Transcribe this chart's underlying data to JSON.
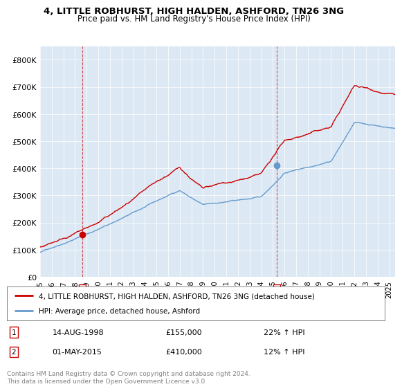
{
  "title1": "4, LITTLE ROBHURST, HIGH HALDEN, ASHFORD, TN26 3NG",
  "title2": "Price paid vs. HM Land Registry's House Price Index (HPI)",
  "ylabel_ticks": [
    "£0",
    "£100K",
    "£200K",
    "£300K",
    "£400K",
    "£500K",
    "£600K",
    "£700K",
    "£800K"
  ],
  "ytick_values": [
    0,
    100000,
    200000,
    300000,
    400000,
    500000,
    600000,
    700000,
    800000
  ],
  "ylim": [
    0,
    850000
  ],
  "xlim_start": 1995.0,
  "xlim_end": 2025.5,
  "x_ticks": [
    1995,
    1996,
    1997,
    1998,
    1999,
    2000,
    2001,
    2002,
    2003,
    2004,
    2005,
    2006,
    2007,
    2008,
    2009,
    2010,
    2011,
    2012,
    2013,
    2014,
    2015,
    2016,
    2017,
    2018,
    2019,
    2020,
    2021,
    2022,
    2023,
    2024,
    2025
  ],
  "bg_color": "#dce9f5",
  "red_color": "#cc0000",
  "blue_color": "#6699cc",
  "sale1_x": 1998.617,
  "sale1_y": 155000,
  "sale2_x": 2015.33,
  "sale2_y": 410000,
  "legend_label_red": "4, LITTLE ROBHURST, HIGH HALDEN, ASHFORD, TN26 3NG (detached house)",
  "legend_label_blue": "HPI: Average price, detached house, Ashford",
  "note1_label": "1",
  "note1_date": "14-AUG-1998",
  "note1_price": "£155,000",
  "note1_hpi": "22% ↑ HPI",
  "note2_label": "2",
  "note2_date": "01-MAY-2015",
  "note2_price": "£410,000",
  "note2_hpi": "12% ↑ HPI",
  "footer": "Contains HM Land Registry data © Crown copyright and database right 2024.\nThis data is licensed under the Open Government Licence v3.0."
}
